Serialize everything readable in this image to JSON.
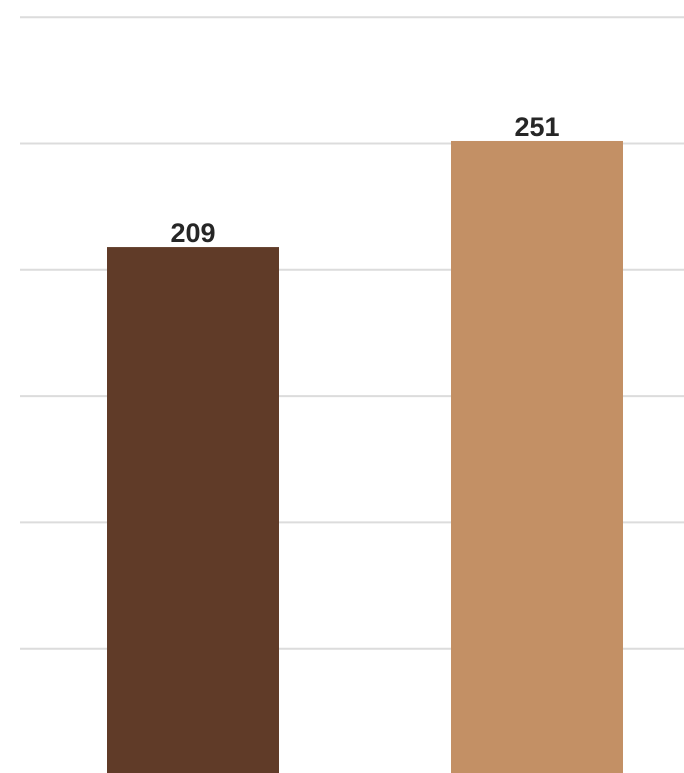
{
  "chart_data": {
    "type": "bar",
    "categories": [
      "",
      ""
    ],
    "values": [
      209,
      251
    ],
    "colors": [
      "#603b28",
      "#c39065"
    ],
    "data_labels": [
      "209",
      "251"
    ],
    "title": "",
    "xlabel": "",
    "ylabel": "",
    "ylim": [
      0,
      300
    ],
    "grid": true,
    "gridline_values": [
      50,
      100,
      150,
      200,
      250,
      300
    ],
    "legend": "none"
  }
}
